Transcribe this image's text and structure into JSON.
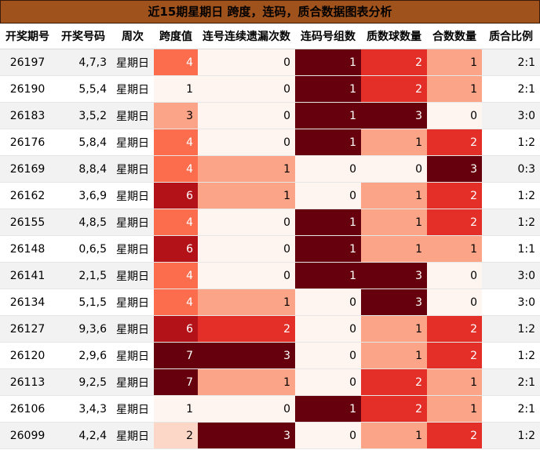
{
  "title": "近15期星期日 跨度，连码，质合数据图表分析",
  "columns": [
    "开奖期号",
    "开奖号码",
    "周次",
    "跨度值",
    "连号连续遗漏次数",
    "连码号组数",
    "质数球数量",
    "合数数量",
    "质合比例"
  ],
  "chart_data": {
    "type": "table",
    "title": "近15期星期日 跨度，连码，质合数据图表分析",
    "columns": [
      "开奖期号",
      "开奖号码",
      "周次",
      "跨度值",
      "连号连续遗漏次数",
      "连码号组数",
      "质数球数量",
      "合数数量",
      "质合比例"
    ],
    "rows": [
      [
        "26197",
        "4,7,3",
        "星期日",
        4,
        0,
        1,
        2,
        1,
        "2:1"
      ],
      [
        "26190",
        "5,5,4",
        "星期日",
        1,
        0,
        1,
        2,
        1,
        "2:1"
      ],
      [
        "26183",
        "3,5,2",
        "星期日",
        3,
        0,
        1,
        3,
        0,
        "3:0"
      ],
      [
        "26176",
        "5,8,4",
        "星期日",
        4,
        0,
        1,
        1,
        2,
        "1:2"
      ],
      [
        "26169",
        "8,8,4",
        "星期日",
        4,
        1,
        0,
        0,
        3,
        "0:3"
      ],
      [
        "26162",
        "3,6,9",
        "星期日",
        6,
        1,
        0,
        1,
        2,
        "1:2"
      ],
      [
        "26155",
        "4,8,5",
        "星期日",
        4,
        0,
        1,
        1,
        2,
        "1:2"
      ],
      [
        "26148",
        "0,6,5",
        "星期日",
        6,
        0,
        1,
        1,
        1,
        "1:1"
      ],
      [
        "26141",
        "2,1,5",
        "星期日",
        4,
        0,
        1,
        3,
        0,
        "3:0"
      ],
      [
        "26134",
        "5,1,5",
        "星期日",
        4,
        1,
        0,
        3,
        0,
        "3:0"
      ],
      [
        "26127",
        "9,3,6",
        "星期日",
        6,
        2,
        0,
        1,
        2,
        "1:2"
      ],
      [
        "26120",
        "2,9,6",
        "星期日",
        7,
        3,
        0,
        1,
        2,
        "1:2"
      ],
      [
        "26113",
        "9,2,5",
        "星期日",
        7,
        1,
        0,
        2,
        1,
        "2:1"
      ],
      [
        "26106",
        "3,4,3",
        "星期日",
        1,
        0,
        1,
        2,
        1,
        "2:1"
      ],
      [
        "26099",
        "4,2,4",
        "星期日",
        2,
        3,
        0,
        1,
        2,
        "1:2"
      ]
    ],
    "heatmap_columns": [
      3,
      4,
      5,
      6,
      7
    ],
    "colormap": "Reds",
    "colors": [
      "#fff5f0",
      "#fcd6c6",
      "#fca487",
      "#fb6d4d",
      "#e32f27",
      "#b21218",
      "#67000d"
    ]
  }
}
